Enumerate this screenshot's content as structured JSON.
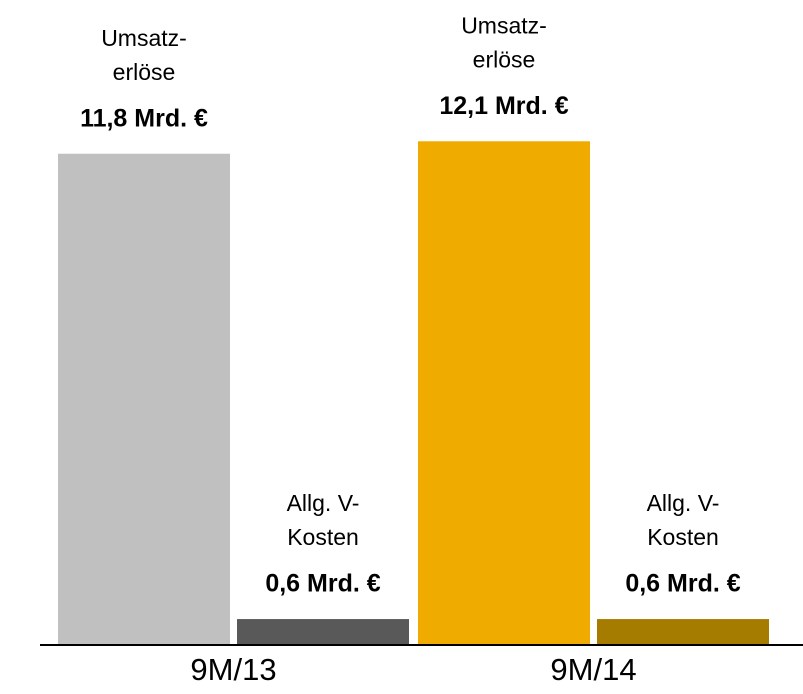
{
  "chart_data": {
    "type": "bar",
    "categories": [
      "9M/13",
      "9M/14"
    ],
    "series": [
      {
        "name": [
          "Umsatz-",
          "erlöse"
        ],
        "colors": [
          "#c0c0c0",
          "#f0ab00"
        ],
        "values": [
          11.8,
          12.1
        ],
        "value_labels": [
          "11,8 Mrd. €",
          "12,1 Mrd. €"
        ]
      },
      {
        "name": [
          "Allg. V-",
          "Kosten"
        ],
        "colors": [
          "#595959",
          "#a67c00"
        ],
        "values": [
          0.6,
          0.6
        ],
        "value_labels": [
          "0,6 Mrd. €",
          "0,6 Mrd. €"
        ]
      }
    ],
    "ylim": [
      0,
      15.5
    ]
  }
}
